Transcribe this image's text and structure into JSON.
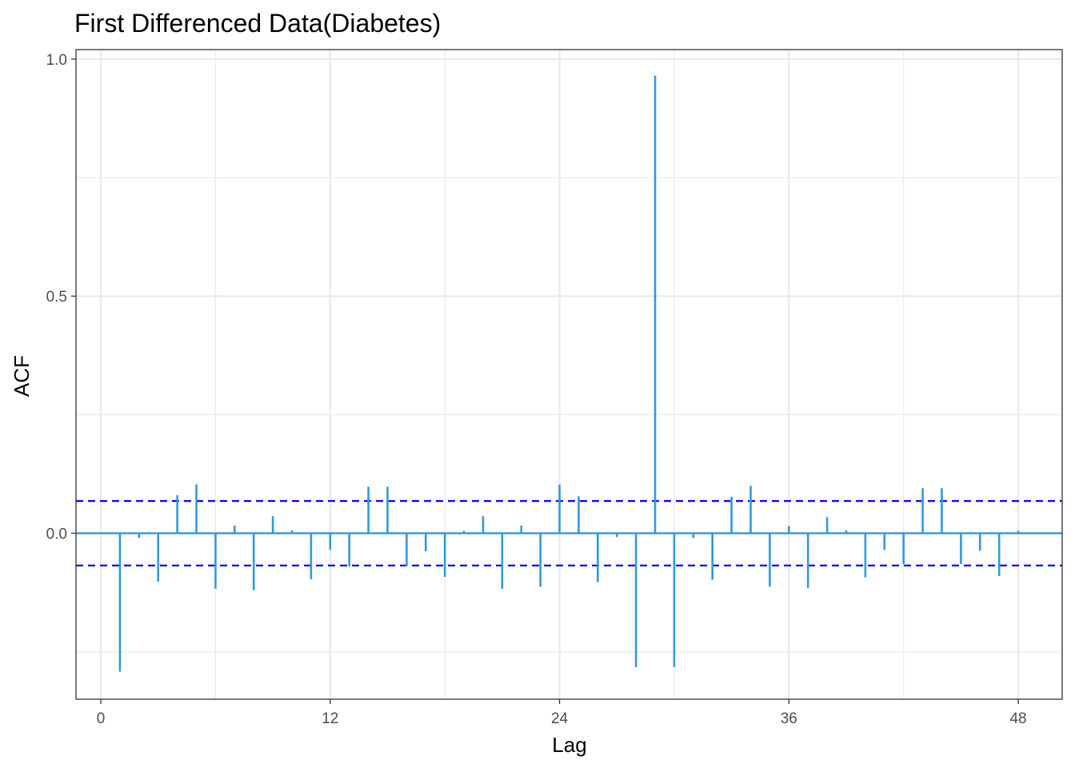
{
  "chart_data": {
    "type": "bar",
    "title": "First Differenced Data(Diabetes)",
    "xlabel": "Lag",
    "ylabel": "ACF",
    "xlim": [
      -1.3,
      50.3
    ],
    "ylim": [
      -0.35,
      1.02
    ],
    "x_ticks": [
      0,
      12,
      24,
      36,
      48
    ],
    "x_tick_labels": [
      "0",
      "12",
      "24",
      "36",
      "48"
    ],
    "y_ticks": [
      0.0,
      0.5,
      1.0
    ],
    "y_tick_labels": [
      "0.0",
      "0.5",
      "1.0"
    ],
    "y_minor_gridlines": [
      -0.25,
      0.25,
      0.75
    ],
    "grid": true,
    "confidence_bounds": [
      0.068,
      -0.068
    ],
    "series": [
      {
        "lags": [
          1,
          2,
          3,
          4,
          5,
          6,
          7,
          8,
          9,
          10,
          11,
          12,
          13,
          14,
          15,
          16,
          17,
          18,
          19,
          20,
          21,
          22,
          23,
          24,
          25,
          26,
          27,
          28,
          29,
          30,
          31,
          32,
          33,
          34,
          35,
          36,
          37,
          38,
          39,
          40,
          41,
          42,
          43,
          44,
          45,
          46,
          47,
          48
        ],
        "values": [
          -0.292,
          -0.01,
          -0.102,
          0.08,
          0.103,
          -0.117,
          0.016,
          -0.12,
          0.036,
          0.006,
          -0.097,
          -0.035,
          -0.07,
          0.098,
          0.098,
          -0.07,
          -0.038,
          -0.092,
          0.005,
          0.036,
          -0.117,
          0.016,
          -0.113,
          0.103,
          0.078,
          -0.103,
          -0.008,
          -0.282,
          0.965,
          -0.282,
          -0.01,
          -0.098,
          0.077,
          0.1,
          -0.113,
          0.015,
          -0.115,
          0.034,
          0.006,
          -0.093,
          -0.035,
          -0.065,
          0.095,
          0.095,
          -0.065,
          -0.037,
          -0.09,
          0.005
        ]
      }
    ],
    "colors": {
      "bars": "#3498db",
      "zero_line": "#3498db",
      "confidence_lines": "#0000ff",
      "grid": "#ebebeb",
      "panel_border": "#333333"
    }
  }
}
